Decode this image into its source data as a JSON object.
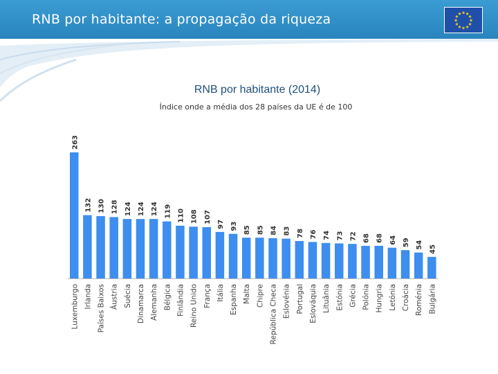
{
  "header": {
    "title": "RNB por habitante: a propagação da riqueza",
    "flag_icon": "eu-flag-icon"
  },
  "colors": {
    "header": "#2e8ec8",
    "bar": "#3d8eee",
    "flag": "#1f4fa8",
    "star": "#f5d31a"
  },
  "chart_data": {
    "type": "bar",
    "title": "RNB por habitante (2014)",
    "subtitle": "Índice onde a média dos 28 países da UE é de 100",
    "xlabel": "",
    "ylabel": "",
    "ylim": [
      0,
      263
    ],
    "categories": [
      "Luxemburgo",
      "Irlanda",
      "Países Baixos",
      "Áustria",
      "Suécia",
      "Dinamarca",
      "Alemanha",
      "Bélgica",
      "Finlândia",
      "Reino Unido",
      "França",
      "Itália",
      "Espanha",
      "Malta",
      "Chipre",
      "República Checa",
      "Eslovénia",
      "Portugal",
      "Eslováquia",
      "Lituânia",
      "Estónia",
      "Grécia",
      "Polónia",
      "Hungria",
      "Letónia",
      "Croácia",
      "Roménia",
      "Bulgária"
    ],
    "values": [
      263,
      132,
      130,
      128,
      124,
      124,
      124,
      119,
      110,
      108,
      107,
      97,
      93,
      85,
      85,
      84,
      83,
      78,
      76,
      74,
      73,
      72,
      68,
      68,
      64,
      59,
      54,
      45
    ]
  }
}
